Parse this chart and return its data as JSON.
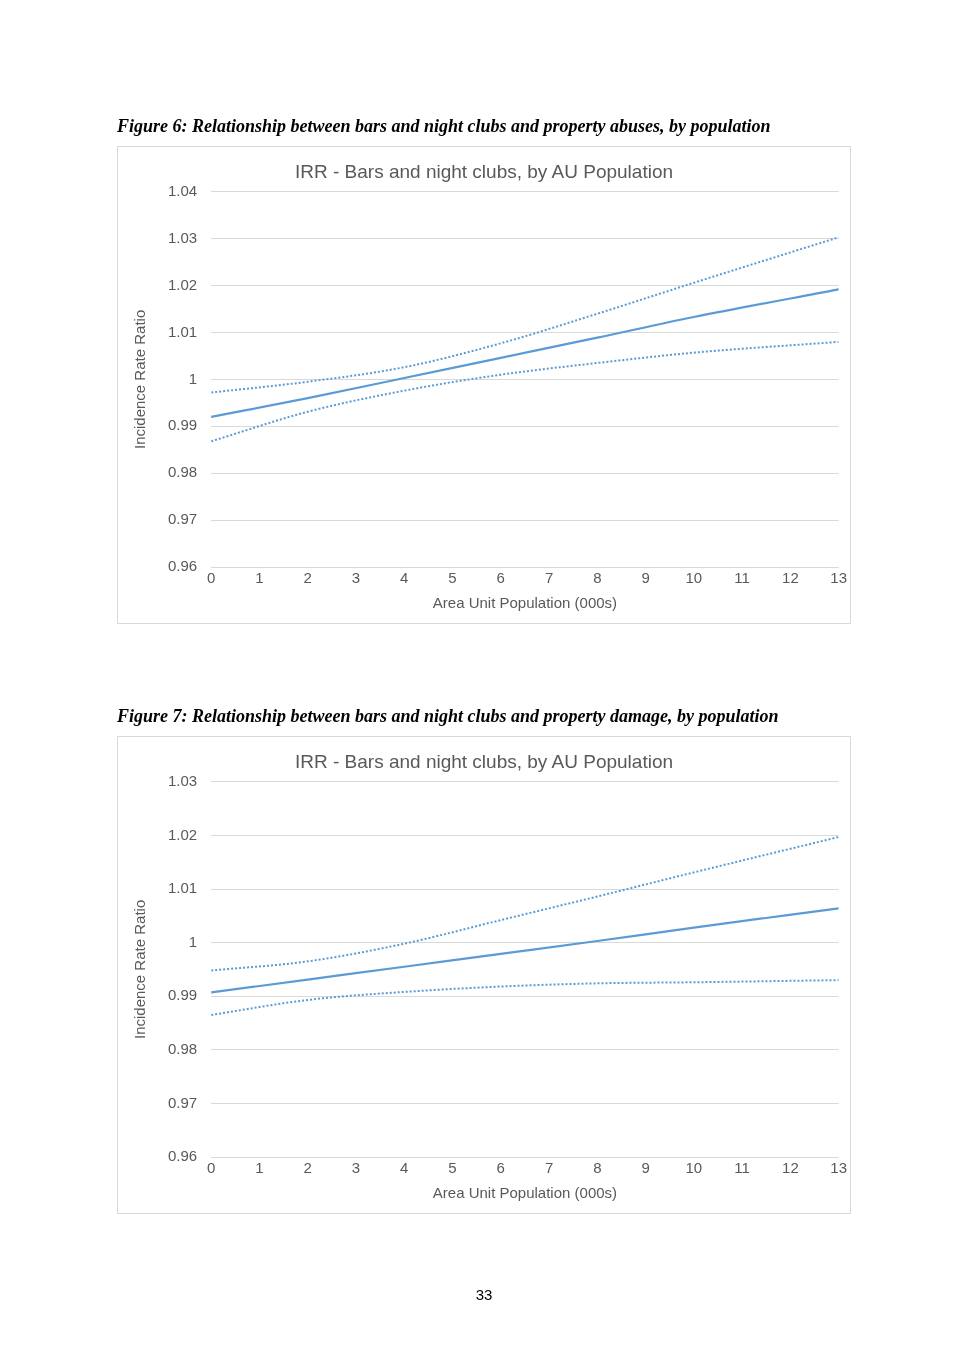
{
  "chart_data": [
    {
      "type": "line",
      "title": "IRR - Bars and night clubs, by AU Population",
      "xlabel": "Area Unit Population (000s)",
      "ylabel": "Incidence Rate Ratio",
      "annotations": [
        "Figure 6: Relationship between bars and night clubs and property abuses, by population"
      ],
      "x": [
        0,
        2,
        4,
        6,
        8,
        10,
        13
      ],
      "series": [
        {
          "color": "#5b9bd5",
          "line_style": "solid",
          "values": [
            0.992,
            0.996,
            1.0003,
            1.0046,
            1.0089,
            1.0133,
            1.0192
          ]
        },
        {
          "color": "#5b9bd5",
          "line_style": "dotted",
          "values": [
            0.9972,
            0.9995,
            1.0026,
            1.0077,
            1.014,
            1.0206,
            1.0303
          ]
        },
        {
          "color": "#5b9bd5",
          "line_style": "dotted",
          "values": [
            0.9868,
            0.9931,
            0.9976,
            1.001,
            1.0035,
            1.0057,
            1.008
          ]
        }
      ],
      "xlim": [
        0,
        13
      ],
      "xticks": [
        0,
        1,
        2,
        3,
        4,
        5,
        6,
        7,
        8,
        9,
        10,
        11,
        12,
        13
      ],
      "ylim": [
        0.96,
        1.04
      ],
      "yticks": [
        0.96,
        0.97,
        0.98,
        0.99,
        1,
        1.01,
        1.02,
        1.03,
        1.04
      ],
      "grid": "y",
      "legend": false,
      "marker": "none"
    },
    {
      "type": "line",
      "title": "IRR - Bars and night clubs, by AU Population",
      "xlabel": "Area Unit Population (000s)",
      "ylabel": "Incidence Rate Ratio",
      "annotations": [
        "Figure 7: Relationship between bars and night clubs and property damage, by population",
        "33"
      ],
      "x": [
        0,
        2,
        4,
        6,
        8,
        10,
        13
      ],
      "series": [
        {
          "color": "#5b9bd5",
          "line_style": "solid",
          "values": [
            0.9907,
            0.9931,
            0.9955,
            0.9979,
            1.0003,
            1.0028,
            1.0064
          ]
        },
        {
          "color": "#5b9bd5",
          "line_style": "dotted",
          "values": [
            0.9948,
            0.9965,
            0.9998,
            1.0042,
            1.0086,
            1.0131,
            1.0197
          ]
        },
        {
          "color": "#5b9bd5",
          "line_style": "dotted",
          "values": [
            0.9865,
            0.9893,
            0.9908,
            0.9918,
            0.9924,
            0.9926,
            0.993
          ]
        }
      ],
      "xlim": [
        0,
        13
      ],
      "xticks": [
        0,
        1,
        2,
        3,
        4,
        5,
        6,
        7,
        8,
        9,
        10,
        11,
        12,
        13
      ],
      "ylim": [
        0.96,
        1.03
      ],
      "yticks": [
        0.96,
        0.97,
        0.98,
        0.99,
        1,
        1.01,
        1.02,
        1.03
      ],
      "grid": "y",
      "legend": false,
      "marker": "none"
    }
  ]
}
